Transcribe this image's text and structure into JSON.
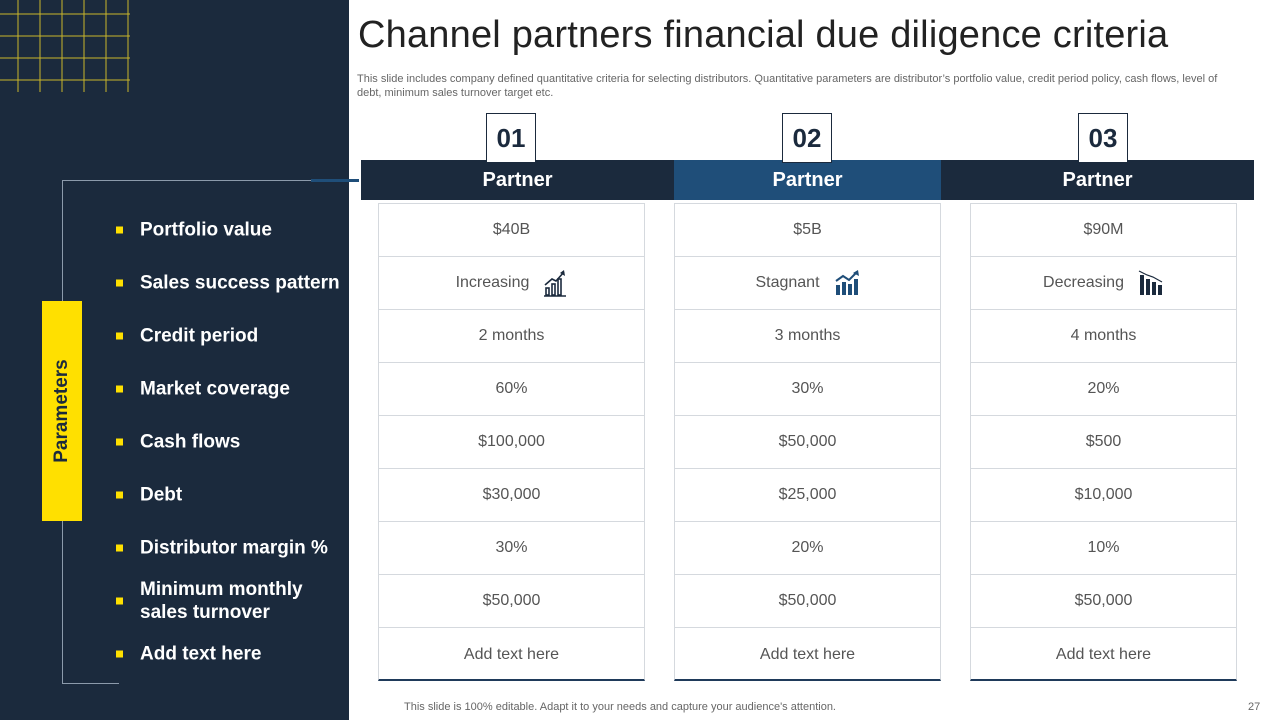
{
  "title": "Channel partners financial due diligence criteria",
  "subtitle": "This slide includes company defined quantitative criteria for selecting distributors. Quantitative parameters are distributor’s portfolio value, credit period policy, cash flows, level of debt, minimum sales turnover target etc.",
  "sidebar": {
    "label": "Parameters",
    "parameters": [
      "Portfolio value",
      "Sales success pattern",
      "Credit period",
      "Market coverage",
      "Cash flows",
      "Debt",
      "Distributor margin %",
      "Minimum monthly sales turnover",
      "Add text here"
    ]
  },
  "partners": [
    {
      "number": "01",
      "header": "Partner",
      "values": [
        "$40B",
        "Increasing",
        "2 months",
        "60%",
        "$100,000",
        "$30,000",
        "30%",
        "$50,000",
        "Add text here"
      ],
      "trend_icon": "bar-chart-increasing-icon"
    },
    {
      "number": "02",
      "header": "Partner",
      "values": [
        "$5B",
        "Stagnant",
        "3 months",
        "30%",
        "$50,000",
        "$25,000",
        "20%",
        "$50,000",
        "Add text here"
      ],
      "trend_icon": "bar-chart-trend-icon"
    },
    {
      "number": "03",
      "header": "Partner",
      "values": [
        "$90M",
        "Decreasing",
        "4 months",
        "20%",
        "$500",
        "$10,000",
        "10%",
        "$50,000",
        "Add text here"
      ],
      "trend_icon": "bar-chart-decreasing-icon"
    }
  ],
  "footer": "This slide is 100% editable. Adapt it to your needs and capture your audience's attention.",
  "page_number": "27",
  "colors": {
    "navy": "#1b2a3d",
    "accent_blue": "#1f4e79",
    "yellow": "#ffe000"
  }
}
